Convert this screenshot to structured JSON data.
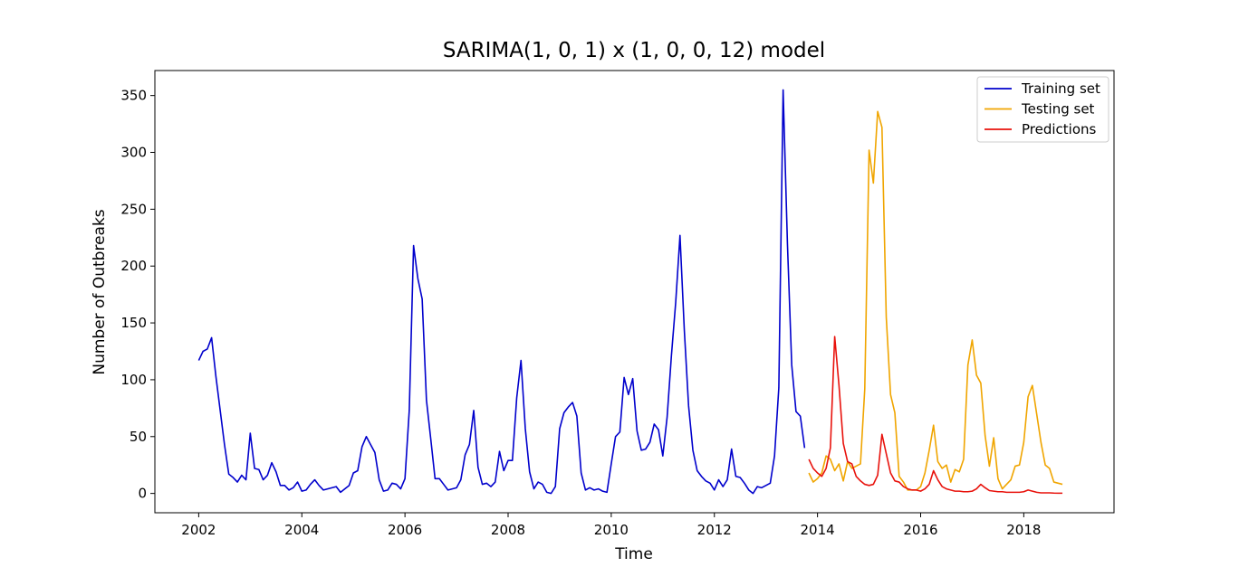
{
  "chart_data": {
    "type": "line",
    "title": "SARIMA(1, 0, 1) x (1, 0, 0, 12) model",
    "xlabel": "Time",
    "ylabel": "Number of Outbreaks",
    "xlim": [
      2001.15,
      2019.75
    ],
    "ylim": [
      -17,
      372
    ],
    "x_ticks": [
      2002,
      2004,
      2006,
      2008,
      2010,
      2012,
      2014,
      2016,
      2018
    ],
    "y_ticks": [
      0,
      50,
      100,
      150,
      200,
      250,
      300,
      350
    ],
    "grid": false,
    "legend_position": "top-right",
    "series": [
      {
        "name": "Training set",
        "color": "#0000cc",
        "start": "2002-01",
        "frequency": "monthly",
        "values": [
          117,
          125,
          127,
          137,
          103,
          73,
          43,
          17,
          14,
          10,
          16,
          12,
          53,
          22,
          21,
          12,
          16,
          27,
          19,
          7,
          7,
          3,
          5,
          10,
          2,
          3,
          8,
          12,
          7,
          3,
          4,
          5,
          6,
          1,
          4,
          7,
          18,
          20,
          41,
          50,
          43,
          36,
          12,
          2,
          3,
          9,
          8,
          4,
          13,
          73,
          218,
          189,
          171,
          82,
          48,
          13,
          13,
          8,
          3,
          4,
          5,
          12,
          34,
          43,
          73,
          23,
          8,
          9,
          6,
          10,
          37,
          20,
          29,
          29,
          84,
          117,
          57,
          19,
          4,
          10,
          8,
          1,
          0,
          6,
          57,
          71,
          76,
          80,
          68,
          18,
          3,
          5,
          3,
          4,
          2,
          1,
          26,
          50,
          54,
          102,
          87,
          101,
          55,
          38,
          39,
          45,
          61,
          56,
          33,
          67,
          121,
          168,
          227,
          144,
          77,
          38,
          20,
          15,
          11,
          9,
          3,
          12,
          6,
          12,
          39,
          15,
          14,
          9,
          3,
          0,
          6,
          5,
          7,
          9,
          33,
          93,
          355,
          220,
          113,
          72,
          68,
          40
        ]
      },
      {
        "name": "Testing set",
        "color": "#f0a500",
        "start": "2013-11",
        "frequency": "monthly",
        "values": [
          18,
          10,
          13,
          18,
          33,
          30,
          20,
          26,
          11,
          28,
          22,
          24,
          26,
          92,
          302,
          273,
          336,
          322,
          155,
          87,
          71,
          15,
          10,
          3,
          3,
          3,
          6,
          18,
          38,
          60,
          28,
          22,
          25,
          10,
          21,
          19,
          30,
          113,
          135,
          104,
          97,
          51,
          24,
          49,
          13,
          4,
          8,
          12,
          24,
          25,
          45,
          85,
          95,
          70,
          45,
          25,
          22,
          10,
          9,
          8
        ]
      },
      {
        "name": "Predictions",
        "color": "#e8120c",
        "start": "2013-11",
        "frequency": "monthly",
        "values": [
          30,
          22,
          18,
          15,
          22,
          40,
          138,
          95,
          44,
          28,
          26,
          15,
          11,
          8,
          7,
          8,
          16,
          52,
          35,
          18,
          11,
          10,
          6,
          4,
          3,
          3,
          2,
          4,
          8,
          20,
          12,
          6,
          4,
          3,
          2,
          2,
          1.5,
          1.5,
          2,
          4,
          8,
          5,
          2.5,
          2,
          1.5,
          1.5,
          1,
          1,
          1,
          1,
          1.5,
          3,
          2,
          1,
          0.5,
          0.5,
          0.5,
          0.3,
          0.2,
          0.2
        ]
      }
    ]
  }
}
